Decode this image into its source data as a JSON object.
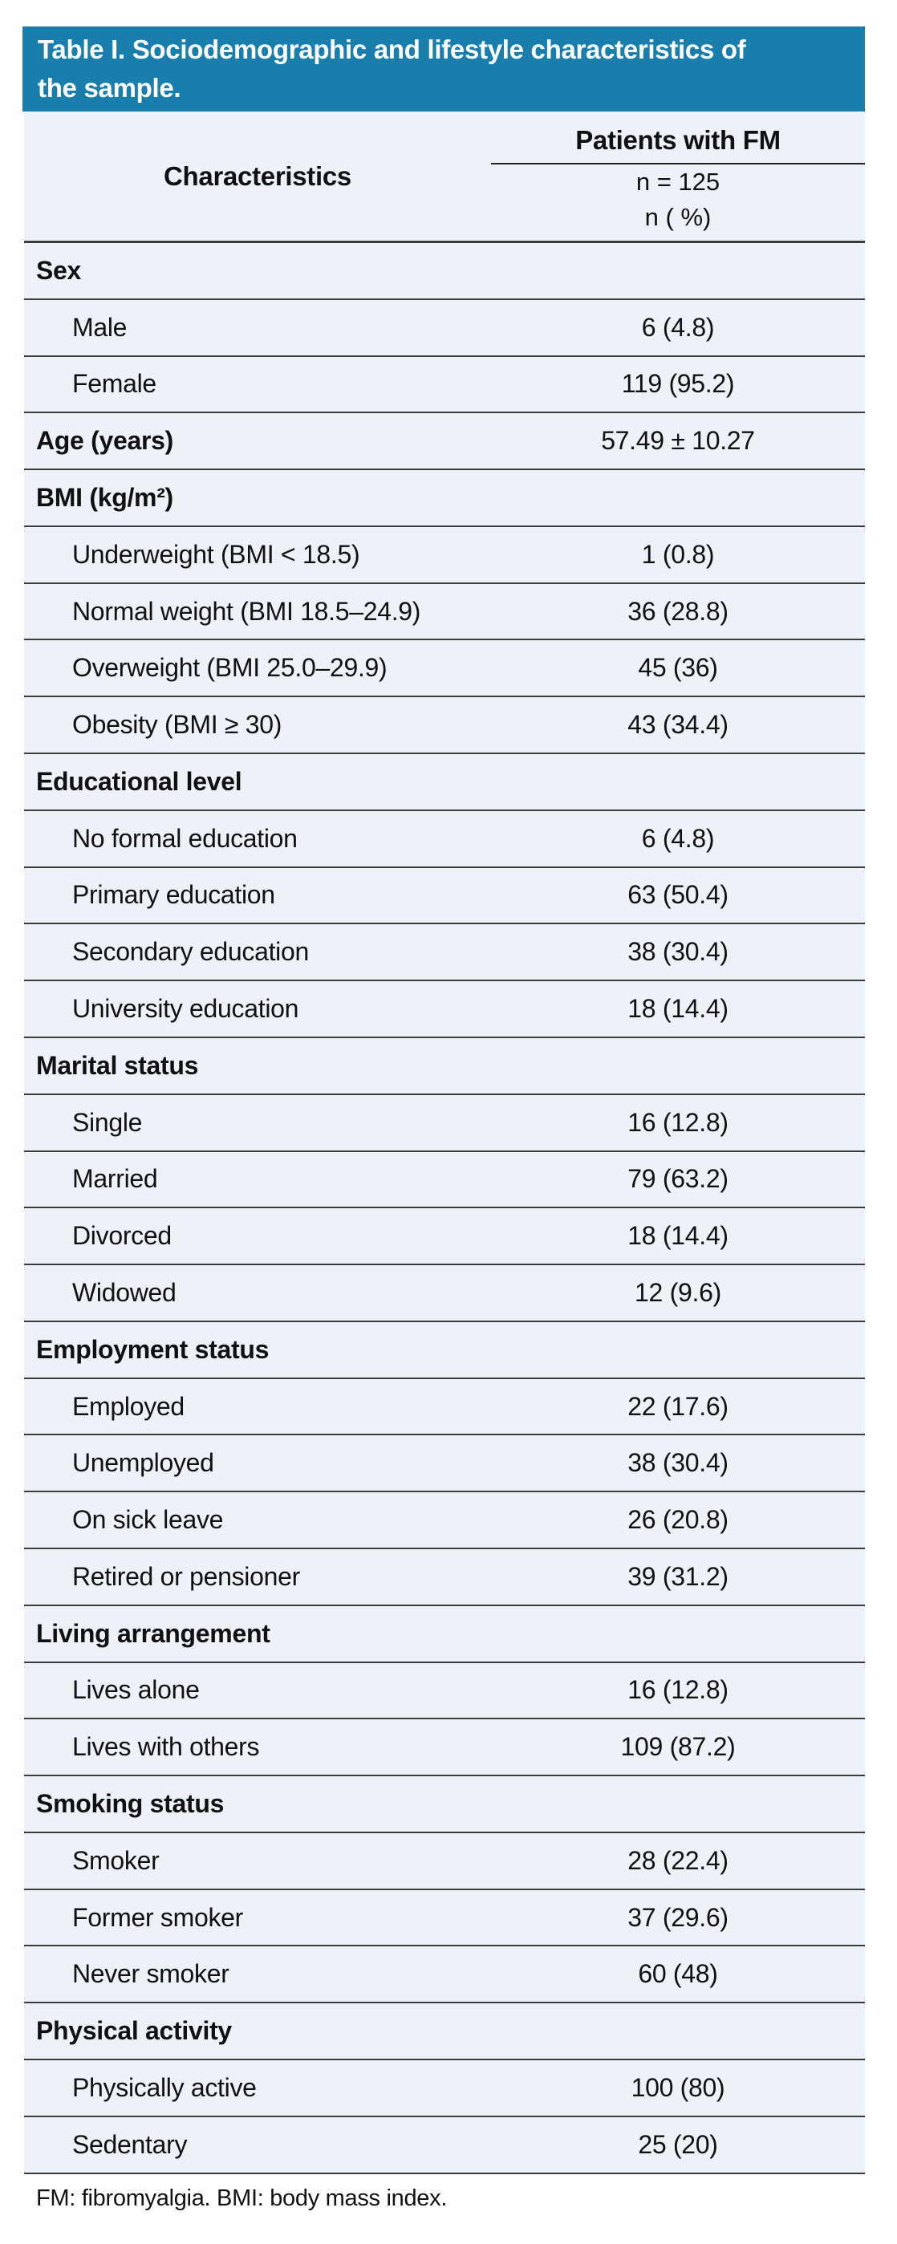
{
  "title_bar": {
    "text": "Table I. Sociodemographic and lifestyle characteristics of the sample.",
    "line1": "Table I. Sociodemographic and lifestyle characteristics of",
    "line2": "the sample."
  },
  "table": {
    "header": {
      "characteristics": "Characteristics",
      "patients_group": "Patients with FM",
      "sub_n": "n = 125",
      "sub_pct": "n ( %)"
    },
    "rows": [
      {
        "type": "group",
        "label": "Sex",
        "value": ""
      },
      {
        "type": "item",
        "label": "Male",
        "value": "6 (4.8)"
      },
      {
        "type": "item",
        "label": "Female",
        "value": "119 (95.2)"
      },
      {
        "type": "group",
        "label": "Age (years)",
        "value": "57.49 ± 10.27"
      },
      {
        "type": "group",
        "label": "BMI (kg/m²)",
        "value": ""
      },
      {
        "type": "item",
        "label": "Underweight (BMI < 18.5)",
        "value": "1 (0.8)"
      },
      {
        "type": "item",
        "label": "Normal weight (BMI 18.5–24.9)",
        "value": "36 (28.8)"
      },
      {
        "type": "item",
        "label": "Overweight (BMI 25.0–29.9)",
        "value": "45 (36)"
      },
      {
        "type": "item",
        "label": "Obesity (BMI ≥ 30)",
        "value": "43 (34.4)"
      },
      {
        "type": "group",
        "label": "Educational level",
        "value": ""
      },
      {
        "type": "item",
        "label": "No formal education",
        "value": "6 (4.8)"
      },
      {
        "type": "item",
        "label": "Primary education",
        "value": "63 (50.4)"
      },
      {
        "type": "item",
        "label": "Secondary education",
        "value": "38 (30.4)"
      },
      {
        "type": "item",
        "label": "University education",
        "value": "18 (14.4)"
      },
      {
        "type": "group",
        "label": "Marital status",
        "value": ""
      },
      {
        "type": "item",
        "label": "Single",
        "value": "16 (12.8)"
      },
      {
        "type": "item",
        "label": "Married",
        "value": "79 (63.2)"
      },
      {
        "type": "item",
        "label": "Divorced",
        "value": "18 (14.4)"
      },
      {
        "type": "item",
        "label": "Widowed",
        "value": "12 (9.6)"
      },
      {
        "type": "group",
        "label": "Employment status",
        "value": ""
      },
      {
        "type": "item",
        "label": "Employed",
        "value": "22 (17.6)"
      },
      {
        "type": "item",
        "label": "Unemployed",
        "value": "38 (30.4)"
      },
      {
        "type": "item",
        "label": "On sick leave",
        "value": "26 (20.8)"
      },
      {
        "type": "item",
        "label": "Retired or pensioner",
        "value": "39 (31.2)"
      },
      {
        "type": "group",
        "label": "Living arrangement",
        "value": ""
      },
      {
        "type": "item",
        "label": "Lives alone",
        "value": "16 (12.8)"
      },
      {
        "type": "item",
        "label": "Lives with others",
        "value": "109 (87.2)"
      },
      {
        "type": "group",
        "label": "Smoking status",
        "value": ""
      },
      {
        "type": "item",
        "label": "Smoker",
        "value": "28 (22.4)"
      },
      {
        "type": "item",
        "label": "Former smoker",
        "value": "37 (29.6)"
      },
      {
        "type": "item",
        "label": "Never smoker",
        "value": "60 (48)"
      },
      {
        "type": "group",
        "label": "Physical activity",
        "value": ""
      },
      {
        "type": "item",
        "label": "Physically active",
        "value": "100 (80)"
      },
      {
        "type": "item",
        "label": "Sedentary",
        "value": "25 (20)"
      }
    ]
  },
  "footnote": "FM: fibromyalgia. BMI: body mass index.",
  "colors": {
    "header_bg": "#1A7EAD",
    "header_text": "#FFFFFF",
    "row_bg": "#EDF1F8",
    "divider": "#3B3B3B",
    "text": "#111111"
  }
}
